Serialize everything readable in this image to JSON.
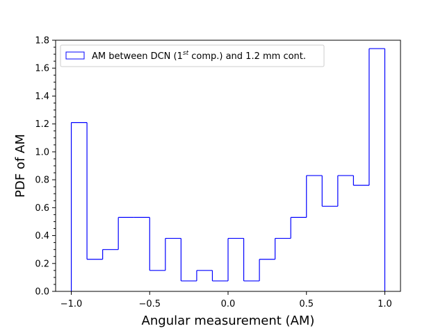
{
  "chart_data": {
    "type": "bar",
    "style": "step-histogram",
    "xlabel": "Angular measurement (AM)",
    "ylabel": "PDF of AM",
    "xlim": [
      -1.1,
      1.1
    ],
    "ylim": [
      0,
      1.8
    ],
    "xticks": [
      -1.0,
      -0.5,
      0.0,
      0.5,
      1.0
    ],
    "xtick_labels": [
      "−1.0",
      "−0.5",
      "0.0",
      "0.5",
      "1.0"
    ],
    "yticks": [
      0.0,
      0.2,
      0.4,
      0.6,
      0.8,
      1.0,
      1.2,
      1.4,
      1.6,
      1.8
    ],
    "ytick_labels": [
      "0.0",
      "0.2",
      "0.4",
      "0.6",
      "0.8",
      "1.0",
      "1.2",
      "1.4",
      "1.6",
      "1.8"
    ],
    "grid": false,
    "legend_position": "top-left",
    "series": [
      {
        "name_prefix": "AM between DCN (1",
        "name_superscript": "st",
        "name_suffix": " comp.) and 1.2 mm cont.",
        "color": "#0000ff",
        "bin_edges": [
          -1.0,
          -0.9,
          -0.8,
          -0.7,
          -0.6,
          -0.5,
          -0.4,
          -0.3,
          -0.2,
          -0.1,
          0.0,
          0.1,
          0.2,
          0.3,
          0.4,
          0.5,
          0.6,
          0.7,
          0.8,
          0.9,
          1.0
        ],
        "values": [
          1.21,
          0.23,
          0.3,
          0.53,
          0.53,
          0.15,
          0.38,
          0.075,
          0.15,
          0.075,
          0.38,
          0.075,
          0.23,
          0.38,
          0.53,
          0.83,
          0.61,
          0.83,
          0.76,
          1.74
        ]
      }
    ]
  }
}
